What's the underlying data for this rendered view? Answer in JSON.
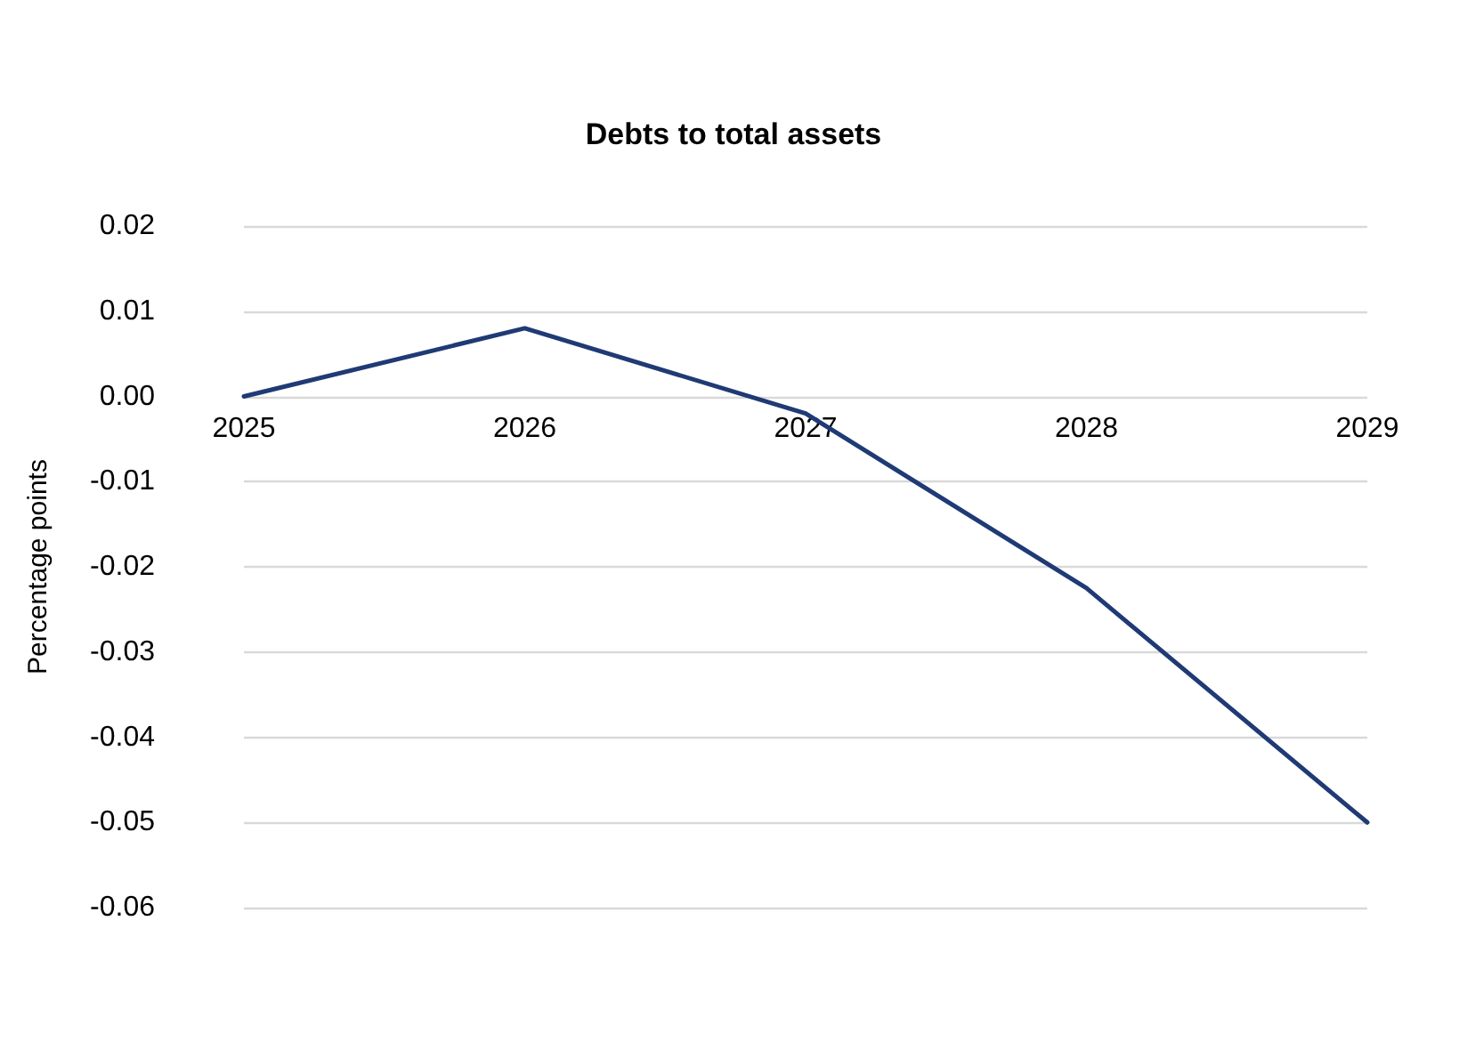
{
  "chart_data": {
    "type": "line",
    "title": "Debts to total assets",
    "ylabel": "Percentage points",
    "categories": [
      "2025",
      "2026",
      "2027",
      "2028",
      "2029"
    ],
    "series": [
      {
        "color": "#1f3a75",
        "values": [
          0,
          0.008,
          -0.002,
          -0.0225,
          -0.05
        ]
      }
    ],
    "ylim": [
      -0.06,
      0.02
    ],
    "yticks": [
      {
        "value": -0.06,
        "label": "-0.06"
      },
      {
        "value": -0.05,
        "label": "-0.05"
      },
      {
        "value": -0.04,
        "label": "-0.04"
      },
      {
        "value": -0.03,
        "label": "-0.03"
      },
      {
        "value": -0.02,
        "label": "-0.02"
      },
      {
        "value": -0.01,
        "label": "-0.01"
      },
      {
        "value": 0,
        "label": "0.00"
      },
      {
        "value": 0.01,
        "label": "0.01"
      },
      {
        "value": 0.02,
        "label": "0.02"
      }
    ],
    "grid": "y",
    "marker": "none",
    "line_style": "solid"
  }
}
